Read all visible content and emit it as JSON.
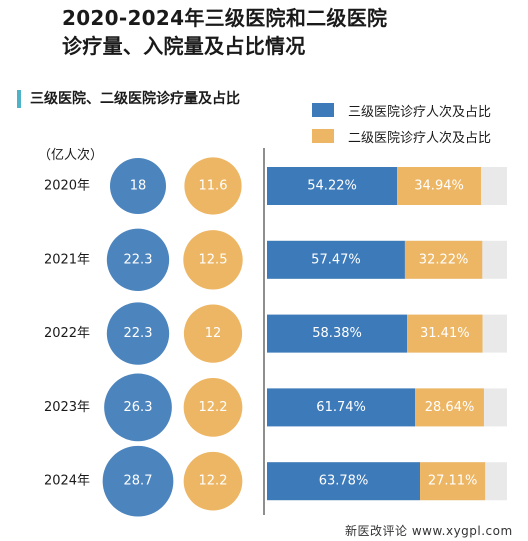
{
  "title": [
    "2020-2024年三级医院和二级医院",
    "诊疗量、入院量及占比情况"
  ],
  "section_title": "三级医院、二级医院诊疗量及占比",
  "unit_label": "（亿人次）",
  "colors": {
    "tertiary": "#3d7ab9",
    "secondary": "#edb664",
    "remainder": "#e9e9e9",
    "accent": "#4fb3c8",
    "axis": "#444444"
  },
  "chart_data": {
    "type": "bar",
    "stacked": true,
    "orientation": "horizontal",
    "percent_scale": [
      0,
      100
    ],
    "categories": [
      "2020年",
      "2021年",
      "2022年",
      "2023年",
      "2024年"
    ],
    "series": [
      {
        "name": "三级医院诊疗人次及占比",
        "volume": [
          18,
          22.3,
          22.3,
          26.3,
          28.7
        ],
        "volume_labels": [
          "18",
          "22.3",
          "22.3",
          "26.3",
          "28.7"
        ],
        "share": [
          54.22,
          57.47,
          58.38,
          61.74,
          63.78
        ],
        "share_labels": [
          "54.22%",
          "57.47%",
          "58.38%",
          "61.74%",
          "63.78%"
        ]
      },
      {
        "name": "二级医院诊疗人次及占比",
        "volume": [
          11.6,
          12.5,
          12,
          12.2,
          12.2
        ],
        "volume_labels": [
          "11.6",
          "12.5",
          "12",
          "12.2",
          "12.2"
        ],
        "share": [
          34.94,
          32.22,
          31.41,
          28.64,
          27.11
        ],
        "share_labels": [
          "34.94%",
          "32.22%",
          "31.41%",
          "28.64%",
          "27.11%"
        ]
      }
    ]
  },
  "footer": "新医改评论 www.xygpl.com"
}
